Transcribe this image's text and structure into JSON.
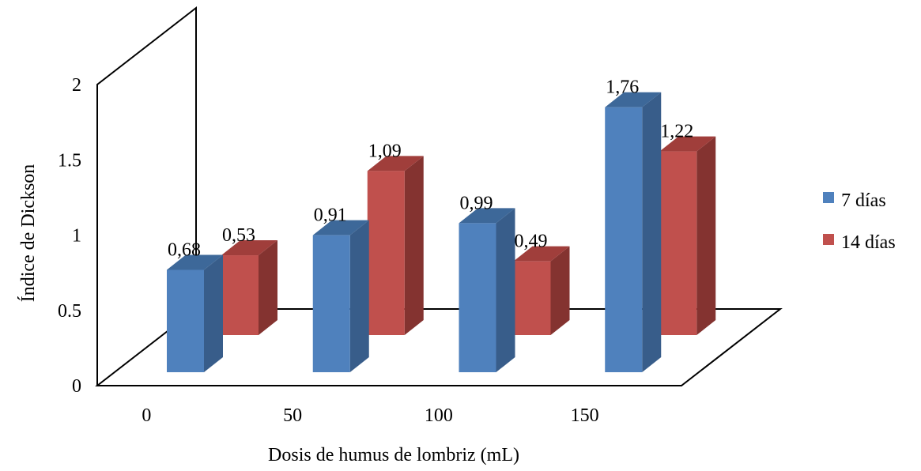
{
  "chart_data": {
    "type": "bar",
    "title": "",
    "xlabel": "Dosis de humus de lombriz (mL)",
    "ylabel": "Índice de Dickson",
    "ylim": [
      0,
      2
    ],
    "yticks": [
      "0",
      "0.5",
      "1",
      "1.5",
      "2"
    ],
    "categories": [
      "0",
      "50",
      "100",
      "150"
    ],
    "series": [
      {
        "name": "7 días",
        "values": [
          0.68,
          0.91,
          0.99,
          1.76
        ],
        "labels": [
          "0,68",
          "0,91",
          "0,99",
          "1,76"
        ]
      },
      {
        "name": "14 días",
        "values": [
          0.53,
          1.09,
          0.49,
          1.22
        ],
        "labels": [
          "0,53",
          "1,09",
          "0,49",
          "1,22"
        ]
      }
    ],
    "legend_position": "right",
    "grid": false,
    "style": "3d-clustered-column"
  },
  "colors": {
    "series": [
      {
        "front": "#4F81BD",
        "side": "#385D8A",
        "top": "#3D6899"
      },
      {
        "front": "#C0504D",
        "side": "#843330",
        "top": "#A03E3B"
      }
    ],
    "axis": "#000000"
  }
}
